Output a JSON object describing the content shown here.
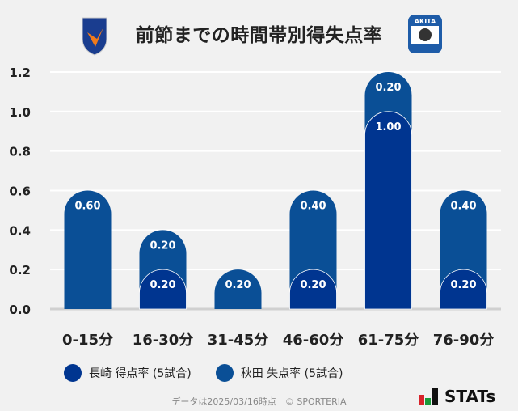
{
  "title": "前節までの時間帯別得失点率",
  "logos": {
    "left": "V-VAREN",
    "right_top": "AKITA",
    "right_bottom": "BLAU BLITZ"
  },
  "chart_data": {
    "type": "bar",
    "stacked": true,
    "categories": [
      "0-15分",
      "16-30分",
      "31-45分",
      "46-60分",
      "61-75分",
      "76-90分"
    ],
    "series": [
      {
        "name": "長崎 得点率 (5試合)",
        "color": "#003590",
        "values": [
          0,
          0.2,
          0,
          0.2,
          1.0,
          0.2
        ]
      },
      {
        "name": "秋田 失点率 (5試合)",
        "color": "#0a4f96",
        "values": [
          0.6,
          0.2,
          0.2,
          0.4,
          0.2,
          0.4
        ]
      }
    ],
    "yticks": [
      "0.0",
      "0.2",
      "0.4",
      "0.6",
      "0.8",
      "1.0",
      "1.2"
    ],
    "ylim": [
      0,
      1.2
    ],
    "grid": true,
    "legend": "bottom"
  },
  "footer": "データは2025/03/16時点　© SPORTERIA",
  "brand": "STATs"
}
